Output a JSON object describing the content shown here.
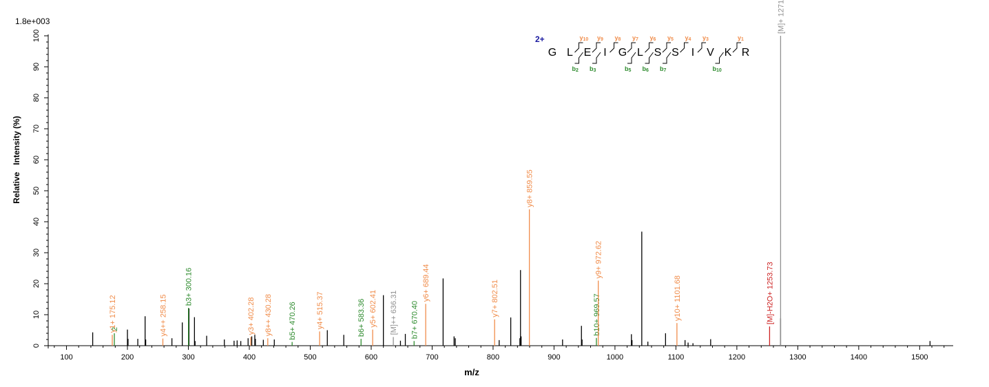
{
  "chart_data": {
    "type": "bar",
    "scale_label": "1.8e+003",
    "xlabel": "m/z",
    "ylabel": "Relative   Intensity (%)",
    "xlim": [
      70,
      1555
    ],
    "ylim": [
      0,
      100
    ],
    "xticks": [
      100,
      200,
      300,
      400,
      500,
      600,
      700,
      800,
      900,
      1000,
      1100,
      1200,
      1300,
      1400,
      1500
    ],
    "yticks": [
      0,
      10,
      20,
      30,
      40,
      50,
      60,
      70,
      80,
      90,
      100
    ],
    "colors": {
      "unassigned": "#000000",
      "y_ion": "#f08c4a",
      "b_ion": "#2e8b2e",
      "precursor": "#909090",
      "water_loss": "#cc2222",
      "charge": "#1a1aa0"
    },
    "peaks_unassigned": [
      [
        143,
        4.3
      ],
      [
        200,
        5.2
      ],
      [
        201,
        2.2
      ],
      [
        217,
        2.2
      ],
      [
        229,
        9.5
      ],
      [
        230,
        2.0
      ],
      [
        273,
        2.4
      ],
      [
        290,
        7.5
      ],
      [
        301,
        12.0
      ],
      [
        310,
        9.2
      ],
      [
        311,
        1.5
      ],
      [
        330,
        3.2
      ],
      [
        359,
        2.0
      ],
      [
        375,
        1.6
      ],
      [
        380,
        1.7
      ],
      [
        386,
        1.5
      ],
      [
        398,
        2.4
      ],
      [
        404,
        3.0
      ],
      [
        409,
        3.5
      ],
      [
        410,
        2.2
      ],
      [
        423,
        1.9
      ],
      [
        441,
        2.0
      ],
      [
        528,
        5.0
      ],
      [
        555,
        3.5
      ],
      [
        620,
        16.3
      ],
      [
        648,
        1.6
      ],
      [
        656,
        3.8
      ],
      [
        718,
        21.7
      ],
      [
        736,
        3.0
      ],
      [
        738,
        2.4
      ],
      [
        810,
        1.8
      ],
      [
        829,
        9.1
      ],
      [
        844,
        2.4
      ],
      [
        845,
        24.4
      ],
      [
        846,
        3.0
      ],
      [
        914,
        2.0
      ],
      [
        945,
        6.4
      ],
      [
        946,
        2.0
      ],
      [
        1027,
        3.7
      ],
      [
        1028,
        1.8
      ],
      [
        1044,
        36.8
      ],
      [
        1054,
        1.3
      ],
      [
        1083,
        4.0
      ],
      [
        1115,
        1.8
      ],
      [
        1120,
        1.0
      ],
      [
        1128,
        0.8
      ],
      [
        1157,
        2.1
      ],
      [
        1271.8,
        8.8
      ],
      [
        1517,
        1.5
      ]
    ],
    "peaks_labeled": [
      {
        "mz": 175.12,
        "intensity": 3.5,
        "label": "y1+ 175.12",
        "type": "y"
      },
      {
        "mz": 175.12,
        "intensity": 4.0,
        "label": "2",
        "type": "b"
      },
      {
        "mz": 258.15,
        "intensity": 2.3,
        "label": "y4++ 258.15",
        "type": "y"
      },
      {
        "mz": 300.16,
        "intensity": 12.2,
        "label": "b3+ 300.16",
        "type": "b"
      },
      {
        "mz": 402.28,
        "intensity": 2.8,
        "label": "y3+ 402.28",
        "type": "y"
      },
      {
        "mz": 430.28,
        "intensity": 2.4,
        "label": "y8++ 430.28",
        "type": "y"
      },
      {
        "mz": 470.26,
        "intensity": 1.2,
        "label": "b5+ 470.26",
        "type": "b"
      },
      {
        "mz": 515.37,
        "intensity": 4.6,
        "label": "y4+ 515.37",
        "type": "y"
      },
      {
        "mz": 583.36,
        "intensity": 2.2,
        "label": "b6+ 583.36",
        "type": "b"
      },
      {
        "mz": 602.41,
        "intensity": 5.2,
        "label": "y5+ 602.41",
        "type": "y"
      },
      {
        "mz": 636.31,
        "intensity": 2.8,
        "label": "[M]++ 636.31",
        "type": "precursor"
      },
      {
        "mz": 670.4,
        "intensity": 1.5,
        "label": "b7+ 670.40",
        "type": "b"
      },
      {
        "mz": 689.44,
        "intensity": 13.5,
        "label": "y6+ 689.44",
        "type": "y"
      },
      {
        "mz": 802.51,
        "intensity": 8.5,
        "label": "y7+ 802.51",
        "type": "y"
      },
      {
        "mz": 859.55,
        "intensity": 44.0,
        "label": "y8+ 859.55",
        "type": "y"
      },
      {
        "mz": 969.57,
        "intensity": 2.5,
        "label": "b10+ 969.57",
        "type": "b"
      },
      {
        "mz": 972.62,
        "intensity": 21.0,
        "label": "y9+ 972.62",
        "type": "y"
      },
      {
        "mz": 1101.68,
        "intensity": 7.3,
        "label": "y10+ 1101.68",
        "type": "y"
      },
      {
        "mz": 1253.73,
        "intensity": 6.2,
        "label": "[M]-H2O+ 1253.73",
        "type": "water_loss"
      },
      {
        "mz": 1271.8,
        "intensity": 100,
        "label": "[M]+ 1271.80",
        "type": "precursor"
      }
    ],
    "annotation": {
      "charge": "2+",
      "residues": [
        "G",
        "L",
        "E",
        "I",
        "G",
        "L",
        "S",
        "S",
        "I",
        "V",
        "K",
        "R"
      ],
      "y_ions": [
        {
          "after": 2,
          "label": "y",
          "sub": "10"
        },
        {
          "after": 3,
          "label": "y",
          "sub": "9"
        },
        {
          "after": 4,
          "label": "y",
          "sub": "8"
        },
        {
          "after": 5,
          "label": "y",
          "sub": "7"
        },
        {
          "after": 6,
          "label": "y",
          "sub": "6"
        },
        {
          "after": 7,
          "label": "y",
          "sub": "5"
        },
        {
          "after": 8,
          "label": "y",
          "sub": "4"
        },
        {
          "after": 9,
          "label": "y",
          "sub": "3"
        },
        {
          "after": 11,
          "label": "y",
          "sub": "1"
        }
      ],
      "b_ions": [
        {
          "after": 2,
          "label": "b",
          "sub": "2"
        },
        {
          "after": 3,
          "label": "b",
          "sub": "3"
        },
        {
          "after": 5,
          "label": "b",
          "sub": "5"
        },
        {
          "after": 6,
          "label": "b",
          "sub": "6"
        },
        {
          "after": 7,
          "label": "b",
          "sub": "7"
        },
        {
          "after": 10,
          "label": "b",
          "sub": "10"
        }
      ]
    }
  }
}
